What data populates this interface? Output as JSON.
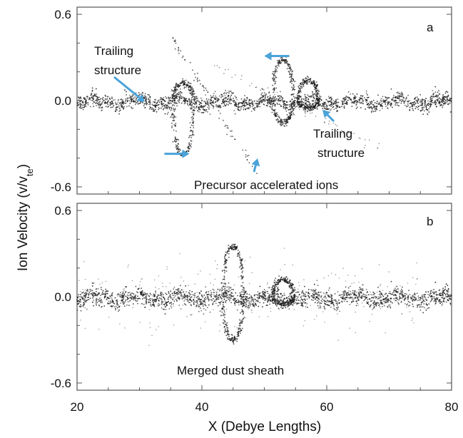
{
  "chart_data": {
    "type": "scatter",
    "ylabel": "Ion Velocity (v/v",
    "ylabel_sub": "te",
    "ylabel_close": ")",
    "xlabel": "X (Debye Lengths)",
    "xlim": [
      20,
      80
    ],
    "x_ticks": [
      "20",
      "40",
      "60",
      "80"
    ],
    "colors": {
      "points": "#1a1a1a",
      "arrows": "#4aa3d9",
      "frame": "#555555"
    },
    "panels": [
      {
        "letter": "a",
        "ylim": [
          -0.65,
          0.65
        ],
        "y_ticks": [
          "0.6",
          "0.0",
          "-0.6"
        ],
        "y_tick_values": [
          0.6,
          0.0,
          -0.6
        ],
        "annotations": [
          {
            "text_lines": [
              "Trailing",
              "structure"
            ],
            "target": [
              31,
              0.0
            ]
          },
          {
            "text_lines": [
              "Trailing",
              "structure"
            ],
            "target": [
              59,
              -0.05
            ]
          },
          {
            "text_lines": [
              "Precursor accelerated ions"
            ],
            "target": [
              47,
              -0.4
            ]
          }
        ],
        "flow_arrows": [
          {
            "from": [
              54,
              0.31
            ],
            "to": [
              50,
              0.31
            ],
            "direction": "left"
          },
          {
            "from": [
              34,
              -0.37
            ],
            "to": [
              38,
              -0.37
            ],
            "direction": "right"
          }
        ],
        "features": {
          "baseline_noise": 0.025,
          "oscillations": [
            {
              "x": 37,
              "amp_up": 0.12,
              "amp_down": -0.38
            },
            {
              "x": 53,
              "amp_up": 0.28,
              "amp_down": -0.15
            },
            {
              "x": 57,
              "amp_up": 0.14,
              "amp_down": -0.05
            }
          ],
          "precursor_beam": {
            "x_start": 35,
            "v_start": 0.45,
            "x_end": 49,
            "v_end": -0.52
          }
        }
      },
      {
        "letter": "b",
        "ylim": [
          -0.65,
          0.65
        ],
        "y_ticks": [
          "0.6",
          "0.0",
          "-0.6"
        ],
        "y_tick_values": [
          0.6,
          0.0,
          -0.6
        ],
        "annotations": [
          {
            "text_lines": [
              "Merged dust sheath"
            ]
          }
        ],
        "features": {
          "baseline_noise": 0.03,
          "oscillations": [
            {
              "x": 45,
              "amp_up": 0.35,
              "amp_down": -0.3
            },
            {
              "x": 53,
              "amp_up": 0.12,
              "amp_down": -0.05
            }
          ]
        }
      }
    ]
  }
}
